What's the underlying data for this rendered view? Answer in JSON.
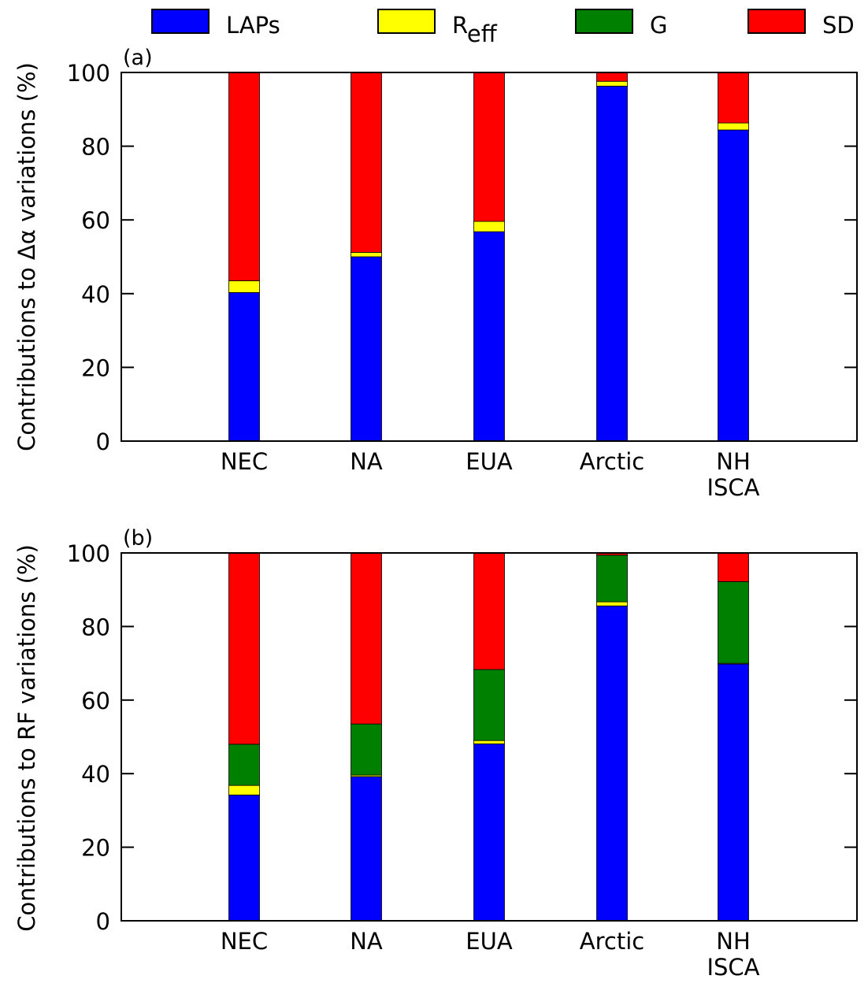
{
  "legend": [
    {
      "key": "laps",
      "label": "LAPs",
      "sub": "",
      "color": "#0000FF"
    },
    {
      "key": "reff",
      "label": "R",
      "sub": "eff",
      "color": "#FFFF00"
    },
    {
      "key": "g",
      "label": "G",
      "sub": "",
      "color": "#008000"
    },
    {
      "key": "sd",
      "label": "SD",
      "sub": "",
      "color": "#FF0000"
    }
  ],
  "chart_data": [
    {
      "type": "bar",
      "stacked": true,
      "panel_label": "(a)",
      "ylabel": "Contributions to Δα variations (%)",
      "ylim": [
        0,
        100
      ],
      "yticks": [
        "0",
        "20",
        "40",
        "60",
        "80",
        "100"
      ],
      "categories": [
        [
          "NEC"
        ],
        [
          "NA"
        ],
        [
          "EUA"
        ],
        [
          "Arctic"
        ],
        [
          "NH",
          "ISCA"
        ]
      ],
      "series": [
        {
          "name": "LAPs",
          "color": "#0000FF",
          "values": [
            40.3,
            50.0,
            56.8,
            96.3,
            84.4
          ]
        },
        {
          "name": "Reff",
          "color": "#FFFF00",
          "values": [
            3.2,
            1.2,
            2.8,
            1.3,
            1.9
          ]
        },
        {
          "name": "G",
          "color": "#008000",
          "values": [
            0,
            0,
            0,
            0,
            0
          ]
        },
        {
          "name": "SD",
          "color": "#FF0000",
          "values": [
            56.5,
            48.8,
            40.4,
            2.4,
            13.7
          ]
        }
      ]
    },
    {
      "type": "bar",
      "stacked": true,
      "panel_label": "(b)",
      "ylabel": "Contributions to RF variations (%)",
      "ylim": [
        0,
        100
      ],
      "yticks": [
        "0",
        "20",
        "40",
        "60",
        "80",
        "100"
      ],
      "categories": [
        [
          "NEC"
        ],
        [
          "NA"
        ],
        [
          "EUA"
        ],
        [
          "Arctic"
        ],
        [
          "NH",
          "ISCA"
        ]
      ],
      "series": [
        {
          "name": "LAPs",
          "color": "#0000FF",
          "values": [
            34.2,
            39.2,
            48.1,
            85.6,
            69.8
          ]
        },
        {
          "name": "Reff",
          "color": "#FFFF00",
          "values": [
            2.6,
            0.4,
            0.9,
            1.1,
            0.2
          ]
        },
        {
          "name": "G",
          "color": "#008000",
          "values": [
            11.2,
            13.9,
            19.3,
            12.7,
            22.2
          ]
        },
        {
          "name": "SD",
          "color": "#FF0000",
          "values": [
            52.0,
            46.5,
            31.7,
            0.6,
            7.8
          ]
        }
      ]
    }
  ]
}
